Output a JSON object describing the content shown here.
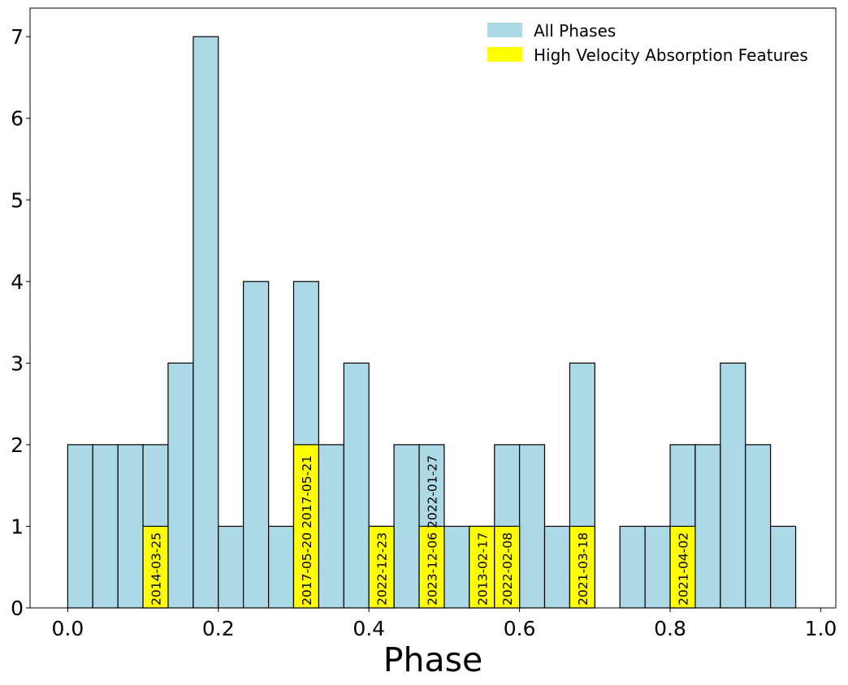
{
  "chart_data": {
    "type": "bar",
    "title": "",
    "xlabel": "Phase",
    "ylabel": "",
    "xlim": [
      -0.05,
      1.02
    ],
    "ylim": [
      0,
      7.35
    ],
    "xticks": [
      0.0,
      0.2,
      0.4,
      0.6,
      0.8,
      1.0
    ],
    "xtick_labels": [
      "0.0",
      "0.2",
      "0.4",
      "0.6",
      "0.8",
      "1.0"
    ],
    "yticks": [
      0,
      1,
      2,
      3,
      4,
      5,
      6,
      7
    ],
    "ytick_labels": [
      "0",
      "1",
      "2",
      "3",
      "4",
      "5",
      "6",
      "7"
    ],
    "grid": false,
    "legend_position": "top-right",
    "bin_width": 0.03333,
    "bin_edges": [
      0.0,
      0.0333,
      0.0667,
      0.1,
      0.1333,
      0.1667,
      0.2,
      0.2333,
      0.2667,
      0.3,
      0.3333,
      0.3667,
      0.4,
      0.4333,
      0.4667,
      0.5,
      0.5333,
      0.5667,
      0.6,
      0.6333,
      0.6667,
      0.7,
      0.7333,
      0.7667,
      0.8,
      0.8333,
      0.8667,
      0.9,
      0.9333,
      0.9667,
      1.0
    ],
    "series": [
      {
        "name": "All Phases",
        "color": "#add8e6",
        "values": [
          2,
          2,
          2,
          2,
          3,
          7,
          1,
          4,
          1,
          4,
          2,
          3,
          1,
          2,
          2,
          1,
          1,
          2,
          2,
          1,
          3,
          0,
          1,
          1,
          2,
          2,
          3,
          2,
          1,
          0
        ]
      },
      {
        "name": "High Velocity Absorption Features",
        "color": "#ffff00",
        "values": [
          0,
          0,
          0,
          1,
          0,
          0,
          0,
          0,
          0,
          2,
          0,
          0,
          1,
          0,
          1,
          0,
          1,
          1,
          0,
          0,
          1,
          0,
          0,
          0,
          1,
          0,
          0,
          0,
          0,
          0
        ]
      }
    ],
    "annotations": [
      {
        "bin": 3,
        "labels": [
          "2014-03-25"
        ]
      },
      {
        "bin": 9,
        "labels": [
          "2017-05-20",
          "2017-05-21"
        ]
      },
      {
        "bin": 12,
        "labels": [
          "2022-12-23"
        ]
      },
      {
        "bin": 14,
        "labels": [
          "2023-12-06",
          "2022-01-27"
        ]
      },
      {
        "bin": 16,
        "labels": [
          "2013-02-17"
        ]
      },
      {
        "bin": 17,
        "labels": [
          "2022-02-08"
        ]
      },
      {
        "bin": 20,
        "labels": [
          "2021-03-18"
        ]
      },
      {
        "bin": 24,
        "labels": [
          "2021-04-02"
        ]
      }
    ],
    "edge_color": "#000000"
  }
}
